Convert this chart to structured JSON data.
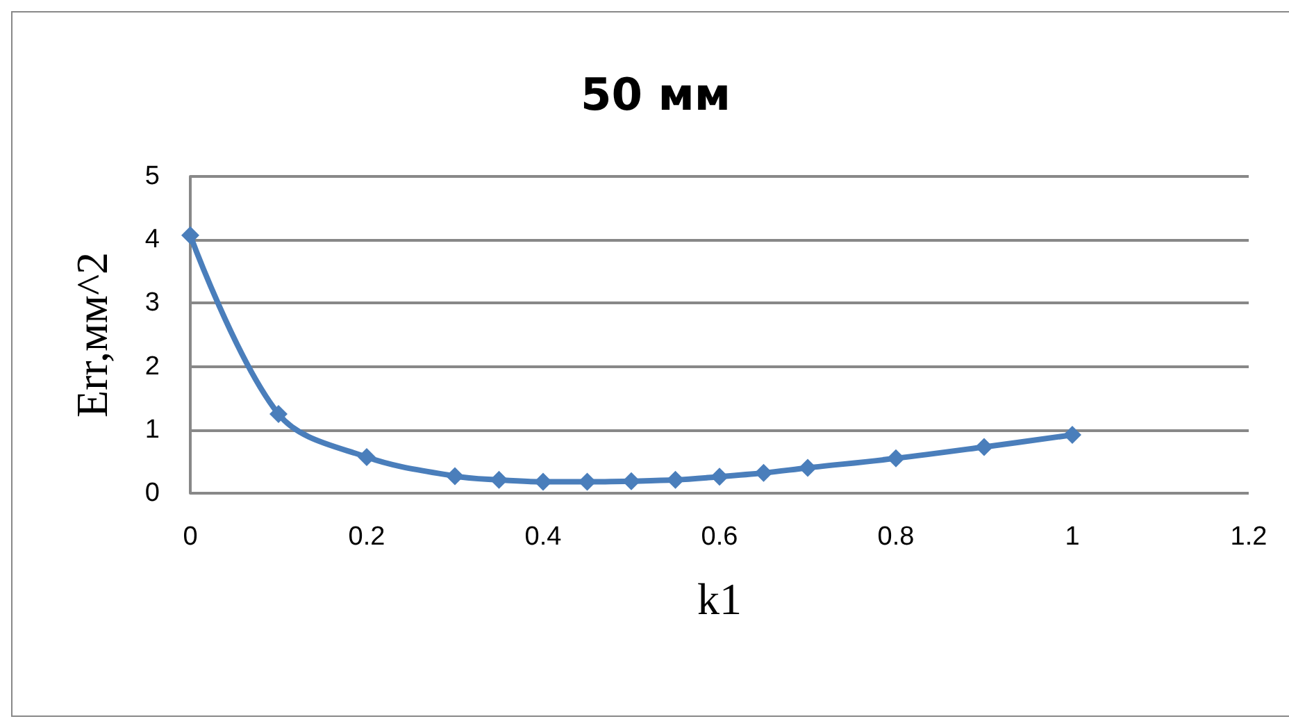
{
  "chart_data": {
    "type": "line",
    "title": "50 мм",
    "xlabel": "k1",
    "ylabel": "Err,мм^2",
    "x": [
      0,
      0.1,
      0.2,
      0.3,
      0.35,
      0.4,
      0.45,
      0.5,
      0.55,
      0.6,
      0.65,
      0.7,
      0.8,
      0.9,
      1.0
    ],
    "series": [
      {
        "color": "#4a7ebb",
        "values": [
          4.07,
          1.25,
          0.57,
          0.27,
          0.21,
          0.18,
          0.18,
          0.19,
          0.21,
          0.26,
          0.32,
          0.4,
          0.55,
          0.73,
          0.92
        ]
      }
    ],
    "xlim": [
      0,
      1.2
    ],
    "xticks": [
      0,
      0.2,
      0.4,
      0.6,
      0.8,
      1,
      1.2
    ],
    "ylim": [
      0,
      5
    ],
    "yticks": [
      0,
      1,
      2,
      3,
      4,
      5
    ],
    "grid": "y",
    "marker": "diamond",
    "line_style": "solid"
  }
}
